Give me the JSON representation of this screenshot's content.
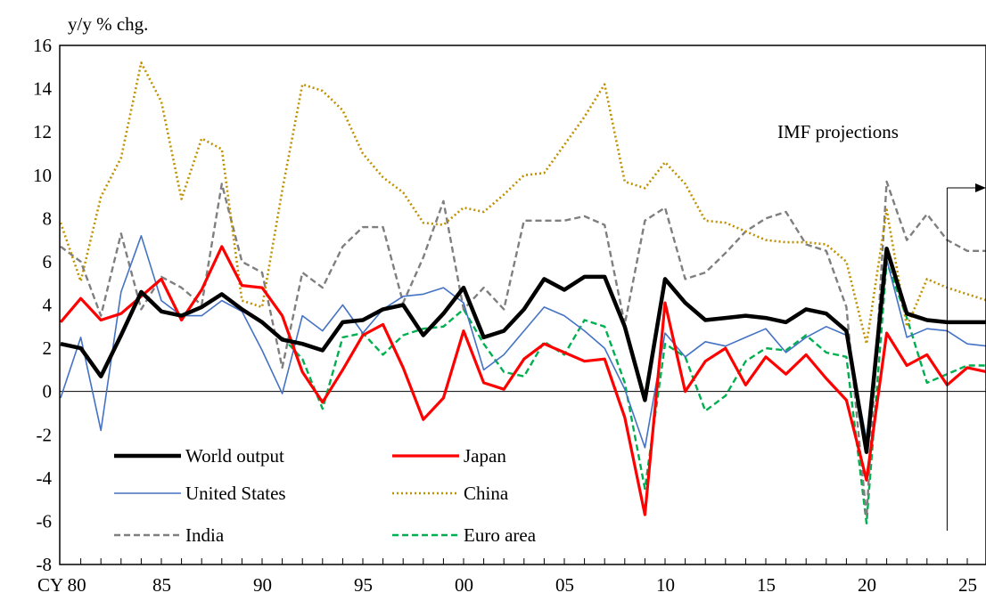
{
  "chart_data": {
    "type": "line",
    "title": "",
    "ylabel": "y/y % chg.",
    "xlabel": "",
    "ylim": [
      -8,
      16
    ],
    "yticks": [
      -8,
      -6,
      -4,
      -2,
      0,
      2,
      4,
      6,
      8,
      10,
      12,
      14,
      16
    ],
    "xlim": [
      1980,
      2026
    ],
    "xticks": [
      {
        "year": 1980,
        "label": "CY 80"
      },
      {
        "year": 1985,
        "label": "85"
      },
      {
        "year": 1990,
        "label": "90"
      },
      {
        "year": 1995,
        "label": "95"
      },
      {
        "year": 2000,
        "label": "00"
      },
      {
        "year": 2005,
        "label": "05"
      },
      {
        "year": 2010,
        "label": "10"
      },
      {
        "year": 2015,
        "label": "15"
      },
      {
        "year": 2020,
        "label": "20"
      },
      {
        "year": 2025,
        "label": "25"
      }
    ],
    "grid": false,
    "legend_position": "bottom-left",
    "annotation": {
      "text": "IMF projections",
      "from_year": 2024
    },
    "series": [
      {
        "name": "World output",
        "color": "#000000",
        "style": "solid-thick",
        "start_year": 1980,
        "values": [
          2.2,
          2.0,
          0.7,
          2.6,
          4.6,
          3.7,
          3.5,
          3.9,
          4.5,
          3.8,
          3.2,
          2.4,
          2.2,
          1.9,
          3.2,
          3.3,
          3.8,
          4.0,
          2.6,
          3.6,
          4.8,
          2.5,
          2.8,
          3.8,
          5.2,
          4.7,
          5.3,
          5.3,
          3.0,
          -0.4,
          5.2,
          4.1,
          3.3,
          3.4,
          3.5,
          3.4,
          3.2,
          3.8,
          3.6,
          2.8,
          -2.8,
          6.6,
          3.6,
          3.3,
          3.2,
          3.2,
          3.2
        ]
      },
      {
        "name": "Japan",
        "color": "#ff0000",
        "style": "solid",
        "start_year": 1980,
        "values": [
          3.2,
          4.3,
          3.3,
          3.6,
          4.4,
          5.2,
          3.3,
          4.7,
          6.7,
          4.9,
          4.8,
          3.5,
          0.9,
          -0.5,
          1.0,
          2.6,
          3.1,
          1.1,
          -1.3,
          -0.3,
          2.8,
          0.4,
          0.1,
          1.5,
          2.2,
          1.8,
          1.4,
          1.5,
          -1.2,
          -5.7,
          4.1,
          0.0,
          1.4,
          2.0,
          0.3,
          1.6,
          0.8,
          1.7,
          0.6,
          -0.4,
          -4.1,
          2.7,
          1.2,
          1.7,
          0.3,
          1.1,
          0.9
        ]
      },
      {
        "name": "United States",
        "color": "#4472c4",
        "style": "solid-thin",
        "start_year": 1980,
        "values": [
          -0.3,
          2.5,
          -1.8,
          4.6,
          7.2,
          4.2,
          3.5,
          3.5,
          4.2,
          3.7,
          1.9,
          -0.1,
          3.5,
          2.8,
          4.0,
          2.7,
          3.8,
          4.4,
          4.5,
          4.8,
          4.1,
          1.0,
          1.7,
          2.8,
          3.9,
          3.5,
          2.8,
          2.0,
          0.1,
          -2.6,
          2.7,
          1.6,
          2.3,
          2.1,
          2.5,
          2.9,
          1.8,
          2.5,
          3.0,
          2.6,
          -2.2,
          6.1,
          2.5,
          2.9,
          2.8,
          2.2,
          2.1
        ]
      },
      {
        "name": "China",
        "color": "#bf9000",
        "style": "dotted",
        "start_year": 1980,
        "values": [
          7.8,
          5.1,
          9.0,
          10.8,
          15.2,
          13.4,
          8.9,
          11.7,
          11.2,
          4.2,
          3.9,
          9.3,
          14.2,
          13.9,
          13.0,
          11.0,
          9.9,
          9.2,
          7.8,
          7.7,
          8.5,
          8.3,
          9.1,
          10.0,
          10.1,
          11.4,
          12.7,
          14.2,
          9.7,
          9.4,
          10.6,
          9.6,
          7.9,
          7.8,
          7.4,
          7.0,
          6.9,
          6.9,
          6.8,
          6.0,
          2.2,
          8.4,
          3.0,
          5.2,
          4.8,
          4.5,
          4.2
        ]
      },
      {
        "name": "India",
        "color": "#7f7f7f",
        "style": "dashed",
        "start_year": 1980,
        "values": [
          6.7,
          6.0,
          3.5,
          7.3,
          3.8,
          5.3,
          4.8,
          4.0,
          9.6,
          6.0,
          5.5,
          1.1,
          5.5,
          4.8,
          6.7,
          7.6,
          7.6,
          4.1,
          6.2,
          8.8,
          3.8,
          4.8,
          3.8,
          7.9,
          7.9,
          7.9,
          8.1,
          7.7,
          3.1,
          7.9,
          8.5,
          5.2,
          5.5,
          6.4,
          7.4,
          8.0,
          8.3,
          6.8,
          6.5,
          3.9,
          -5.8,
          9.7,
          7.0,
          8.2,
          7.0,
          6.5,
          6.5
        ]
      },
      {
        "name": "Euro area",
        "color": "#00b050",
        "style": "dashed",
        "start_year": 1991,
        "values": [
          2.5,
          1.5,
          -0.8,
          2.5,
          2.7,
          1.7,
          2.6,
          2.9,
          3.0,
          3.8,
          2.2,
          0.9,
          0.7,
          2.3,
          1.7,
          3.3,
          3.0,
          0.4,
          -4.5,
          2.2,
          1.6,
          -0.9,
          -0.2,
          1.4,
          2.0,
          1.9,
          2.6,
          1.8,
          1.6,
          -6.1,
          6.0,
          3.4,
          0.4,
          0.8,
          1.2,
          1.2
        ]
      }
    ]
  }
}
